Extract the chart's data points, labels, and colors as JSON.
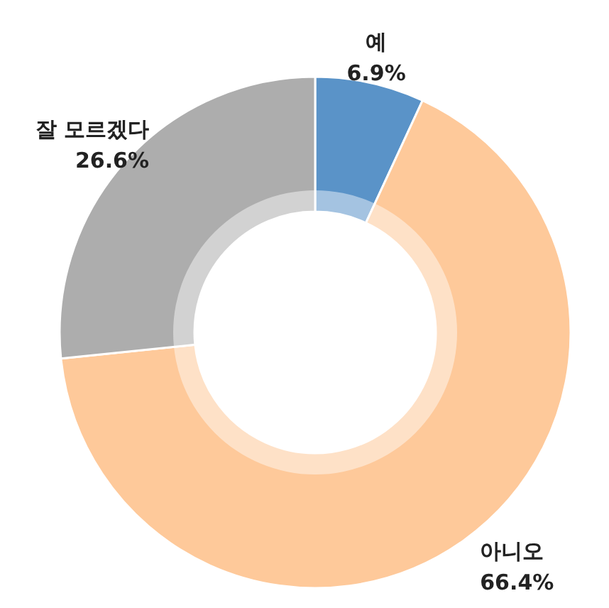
{
  "chart_data": {
    "type": "donut",
    "categories": [
      "예",
      "아니오",
      "잘 모르겠다"
    ],
    "values": [
      6.9,
      66.4,
      26.6
    ],
    "colors": [
      "#5a93c8",
      "#fec99a",
      "#adadad"
    ],
    "value_labels": [
      "6.9%",
      "66.4%",
      "26.6%"
    ]
  }
}
